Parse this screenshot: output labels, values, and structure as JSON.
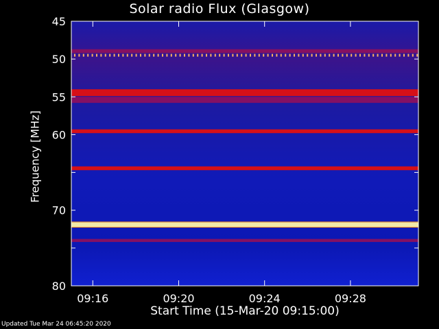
{
  "chart_data": {
    "type": "heatmap",
    "title": "Solar radio Flux (Glasgow)",
    "xlabel": "Start Time (15-Mar-20 09:15:00)",
    "ylabel": "Frequency [MHz]",
    "x_unit": "time",
    "xlim": [
      "09:15:00",
      "09:31:10"
    ],
    "ylim": [
      45,
      80
    ],
    "y_inverted": true,
    "x_ticks": [
      "09:16",
      "09:20",
      "09:24",
      "09:28"
    ],
    "y_ticks": [
      45,
      50,
      55,
      60,
      65,
      70,
      75,
      80
    ],
    "y_tick_labels": [
      "45",
      "50",
      "55",
      "60",
      "",
      "70",
      "",
      "80"
    ],
    "background_intensity": "low",
    "emission_bands_mhz": [
      {
        "from": 48.7,
        "to": 49.2,
        "intensity": "medium"
      },
      {
        "from": 54.0,
        "to": 54.9,
        "intensity": "high"
      },
      {
        "from": 55.0,
        "to": 55.8,
        "intensity": "medium"
      },
      {
        "from": 59.3,
        "to": 59.8,
        "intensity": "high"
      },
      {
        "from": 64.2,
        "to": 64.7,
        "intensity": "high"
      },
      {
        "from": 71.6,
        "to": 72.2,
        "intensity": "very high"
      },
      {
        "from": 73.8,
        "to": 74.2,
        "intensity": "medium"
      }
    ],
    "intermittent_band_mhz": 49.5,
    "colors": {
      "background": "#000000",
      "low": "#0a14c8",
      "medium": "#8a1060",
      "high": "#e01010",
      "very_high": "#fff6a8"
    }
  },
  "footer": {
    "updated": "Updated Tue Mar 24 06:45:20 2020"
  }
}
